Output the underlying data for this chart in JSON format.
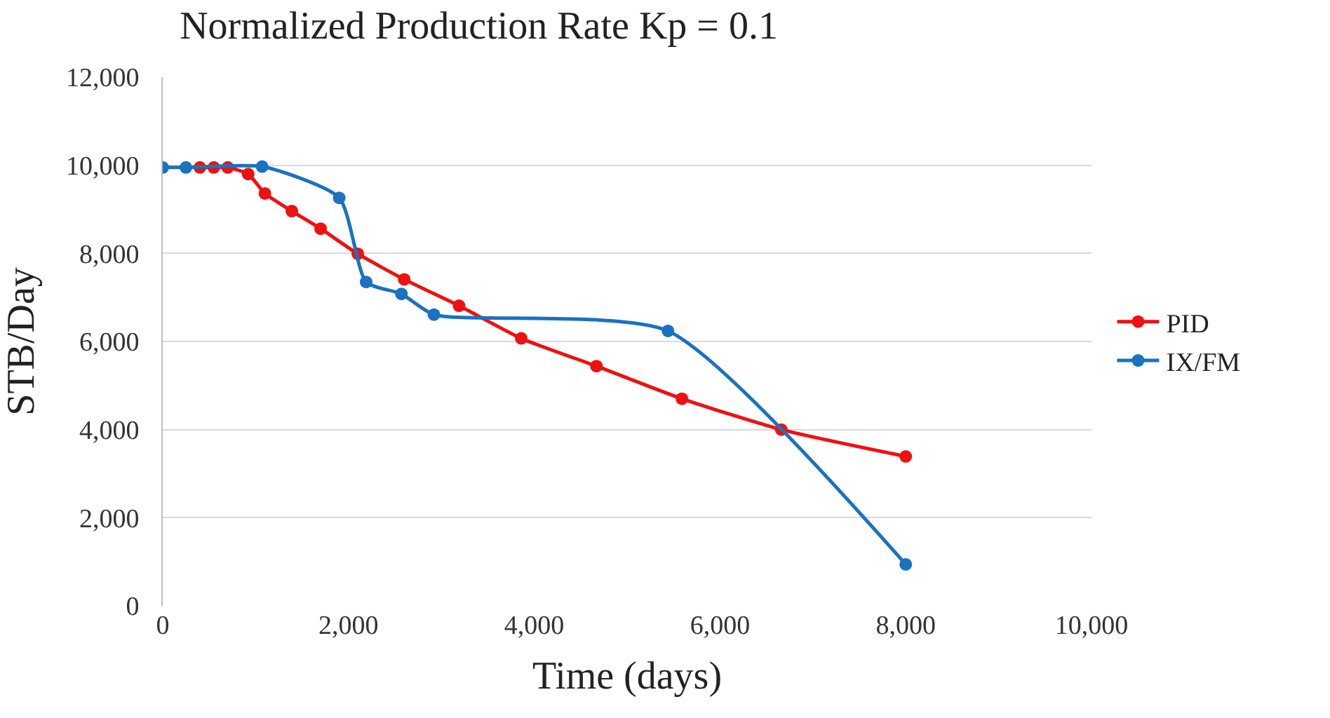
{
  "chart_data": {
    "type": "line",
    "title": "Normalized Production Rate Kp = 0.1",
    "xlabel": "Time (days)",
    "ylabel": "STB/Day",
    "xlim": [
      0,
      10000
    ],
    "xticks": [
      {
        "value": 0,
        "label": "0"
      },
      {
        "value": 2000,
        "label": "2,000"
      },
      {
        "value": 4000,
        "label": "4,000"
      },
      {
        "value": 6000,
        "label": "6,000"
      },
      {
        "value": 8000,
        "label": "8,000"
      },
      {
        "value": 10000,
        "label": "10,000"
      }
    ],
    "ylim": [
      0,
      12000
    ],
    "yticks": [
      {
        "value": 0,
        "label": "0"
      },
      {
        "value": 2000,
        "label": "2,000"
      },
      {
        "value": 4000,
        "label": "4,000"
      },
      {
        "value": 6000,
        "label": "6,000"
      },
      {
        "value": 8000,
        "label": "8,000"
      },
      {
        "value": 10000,
        "label": "10,000"
      },
      {
        "value": 12000,
        "label": "12,000"
      }
    ],
    "grid": "y",
    "legend": "right",
    "marker": "circle",
    "series": [
      {
        "name": "PID",
        "color": "#ee1111",
        "x": [
          400,
          550,
          700,
          920,
          1100,
          1390,
          1700,
          2100,
          2600,
          3190,
          3860,
          4670,
          5590,
          6660,
          8000
        ],
        "values": [
          9950,
          9950,
          9950,
          9800,
          9360,
          8960,
          8560,
          7990,
          7410,
          6810,
          6070,
          5440,
          4700,
          4000,
          3390
        ]
      },
      {
        "name": "IX/FM",
        "color": "#1a72c0",
        "x": [
          0,
          250,
          1070,
          1900,
          2190,
          2570,
          2920,
          5440,
          8000
        ],
        "values": [
          9950,
          9950,
          9970,
          9260,
          7350,
          7080,
          6610,
          6240,
          940
        ]
      }
    ]
  }
}
